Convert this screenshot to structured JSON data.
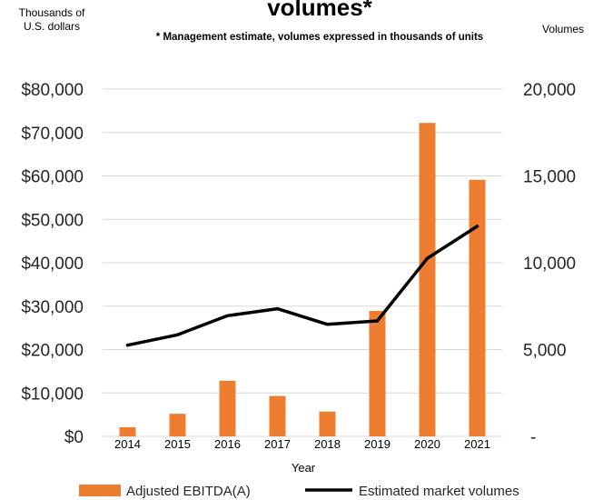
{
  "chart_data": {
    "type": "bar",
    "title": "volumes*",
    "subtitle": "* Management estimate, volumes expressed in thousands of units",
    "xlabel": "Year",
    "ylabel_left": "Thousands of\nU.S. dollars",
    "ylabel_right": "Volumes",
    "categories": [
      "2014",
      "2015",
      "2016",
      "2017",
      "2018",
      "2019",
      "2020",
      "2021"
    ],
    "ylim_left": [
      0,
      80000
    ],
    "ylim_right": [
      0,
      20000
    ],
    "yticks_left": [
      "$0",
      "$10,000",
      "$20,000",
      "$30,000",
      "$40,000",
      "$50,000",
      "$60,000",
      "$70,000",
      "$80,000"
    ],
    "yticks_right": [
      "-",
      "5,000",
      "10,000",
      "15,000",
      "20,000"
    ],
    "grid": true,
    "legend_position": "bottom",
    "series": [
      {
        "name": "Adjusted EBITDA(A)",
        "type": "bar",
        "axis": "left",
        "color": "#ED7D31",
        "values": [
          2100,
          5200,
          12800,
          9300,
          5700,
          28900,
          72200,
          59100
        ]
      },
      {
        "name": "Estimated market volumes",
        "type": "line",
        "axis": "right",
        "color": "#000000",
        "values": [
          5250,
          5850,
          6950,
          7350,
          6450,
          6650,
          10250,
          12100
        ]
      }
    ]
  }
}
